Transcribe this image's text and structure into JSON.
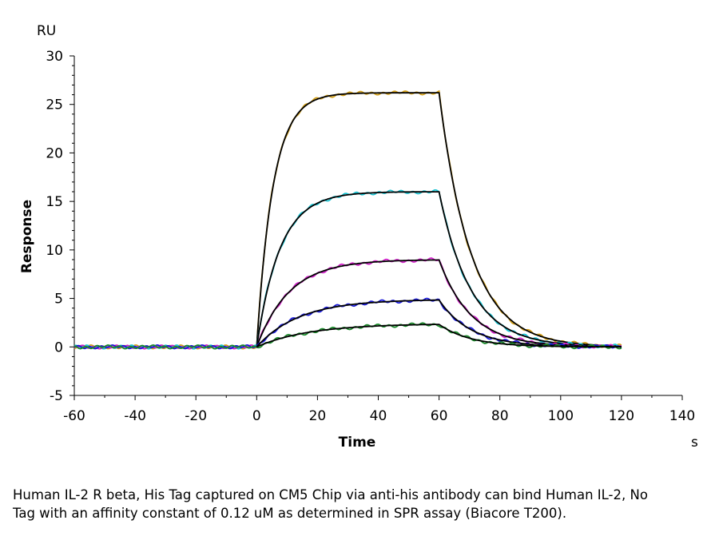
{
  "chart_data": {
    "type": "line",
    "ylabel": "Response",
    "xlabel": "Time",
    "y_unit": "RU",
    "x_unit": "s",
    "xlim": [
      -60,
      140
    ],
    "ylim": [
      -5,
      30
    ],
    "x_ticks": [
      -60,
      -40,
      -20,
      0,
      20,
      40,
      60,
      80,
      100,
      120,
      140
    ],
    "y_ticks": [
      -5,
      0,
      5,
      10,
      15,
      20,
      25,
      30
    ],
    "grid": false,
    "injection_start": 0,
    "dissociation_start": 60,
    "data_end": 120,
    "series": [
      {
        "color": "#d4a017",
        "plateau": 26.2
      },
      {
        "color": "#19c3d2",
        "plateau": 16.0
      },
      {
        "color": "#d020c8",
        "plateau": 9.0
      },
      {
        "color": "#1a1ad8",
        "plateau": 4.9
      },
      {
        "color": "#1a8a2a",
        "plateau": 2.4
      }
    ],
    "fit_color": "#000000"
  },
  "caption": "Human IL-2 R beta, His Tag captured on CM5 Chip via anti-his antibody can bind Human IL-2, No Tag with an affinity constant of 0.12 uM as determined in SPR assay (Biacore T200)."
}
